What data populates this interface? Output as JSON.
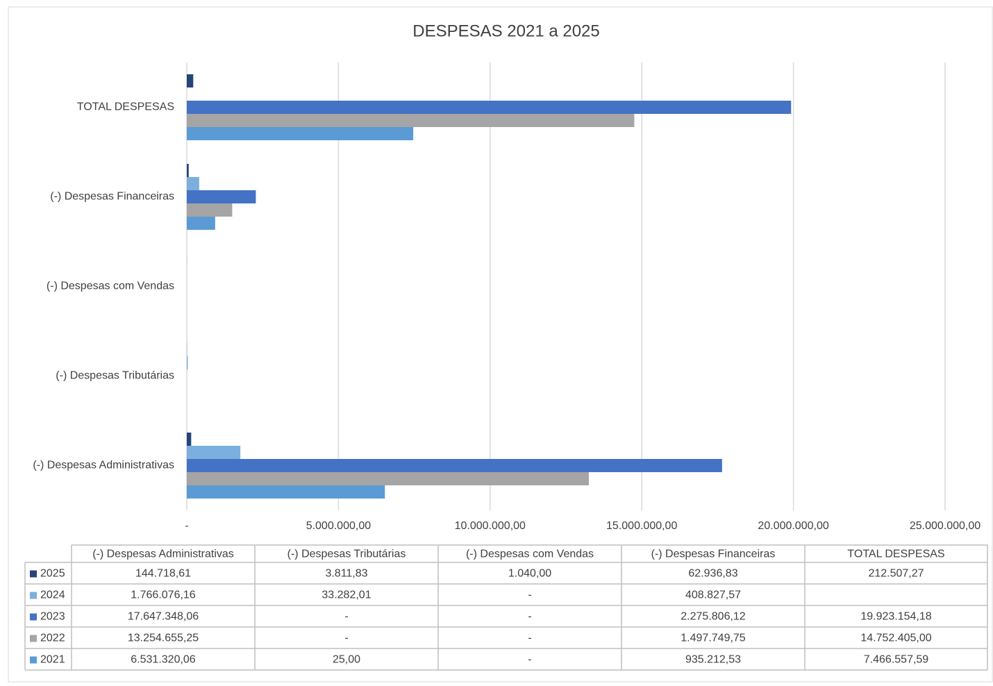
{
  "chart_data": {
    "type": "barh",
    "title": "DESPESAS 2021 a 2025",
    "categories": [
      "(-) Despesas Administrativas",
      "(-) Despesas Tributárias",
      "(-) Despesas com Vendas",
      "(-) Despesas Financeiras",
      "TOTAL DESPESAS"
    ],
    "series": [
      {
        "name": "2025",
        "color": "#264478",
        "values": [
          144718.61,
          3811.83,
          1040.0,
          62936.83,
          212507.27
        ],
        "value_labels": [
          "144.718,61",
          "3.811,83",
          "1.040,00",
          "62.936,83",
          "212.507,27"
        ]
      },
      {
        "name": "2024",
        "color": "#7cafdd",
        "values": [
          1766076.16,
          33282.01,
          0,
          408827.57,
          null
        ],
        "value_labels": [
          "1.766.076,16",
          "33.282,01",
          "-",
          "408.827,57",
          null
        ]
      },
      {
        "name": "2023",
        "color": "#4472c4",
        "values": [
          17647348.06,
          0,
          0,
          2275806.12,
          19923154.18
        ],
        "value_labels": [
          "17.647.348,06",
          "-",
          "-",
          "2.275.806,12",
          "19.923.154,18"
        ]
      },
      {
        "name": "2022",
        "color": "#a5a5a5",
        "values": [
          13254655.25,
          0,
          0,
          1497749.75,
          14752405.0
        ],
        "value_labels": [
          "13.254.655,25",
          "-",
          "-",
          "1.497.749,75",
          "14.752.405,00"
        ]
      },
      {
        "name": "2021",
        "color": "#5b9bd5",
        "values": [
          6531320.06,
          25.0,
          0,
          935212.53,
          7466557.59
        ],
        "value_labels": [
          "6.531.320,06",
          "25,00",
          "-",
          "935.212,53",
          "7.466.557,59"
        ]
      }
    ],
    "xlim": [
      0,
      25000000
    ],
    "xticks": [
      {
        "value": 0,
        "label": "-"
      },
      {
        "value": 5000000,
        "label": "5.000.000,00"
      },
      {
        "value": 10000000,
        "label": "10.000.000,00"
      },
      {
        "value": 15000000,
        "label": "15.000.000,00"
      },
      {
        "value": 20000000,
        "label": "20.000.000,00"
      },
      {
        "value": 25000000,
        "label": "25.000.000,00"
      }
    ],
    "grid": true
  }
}
